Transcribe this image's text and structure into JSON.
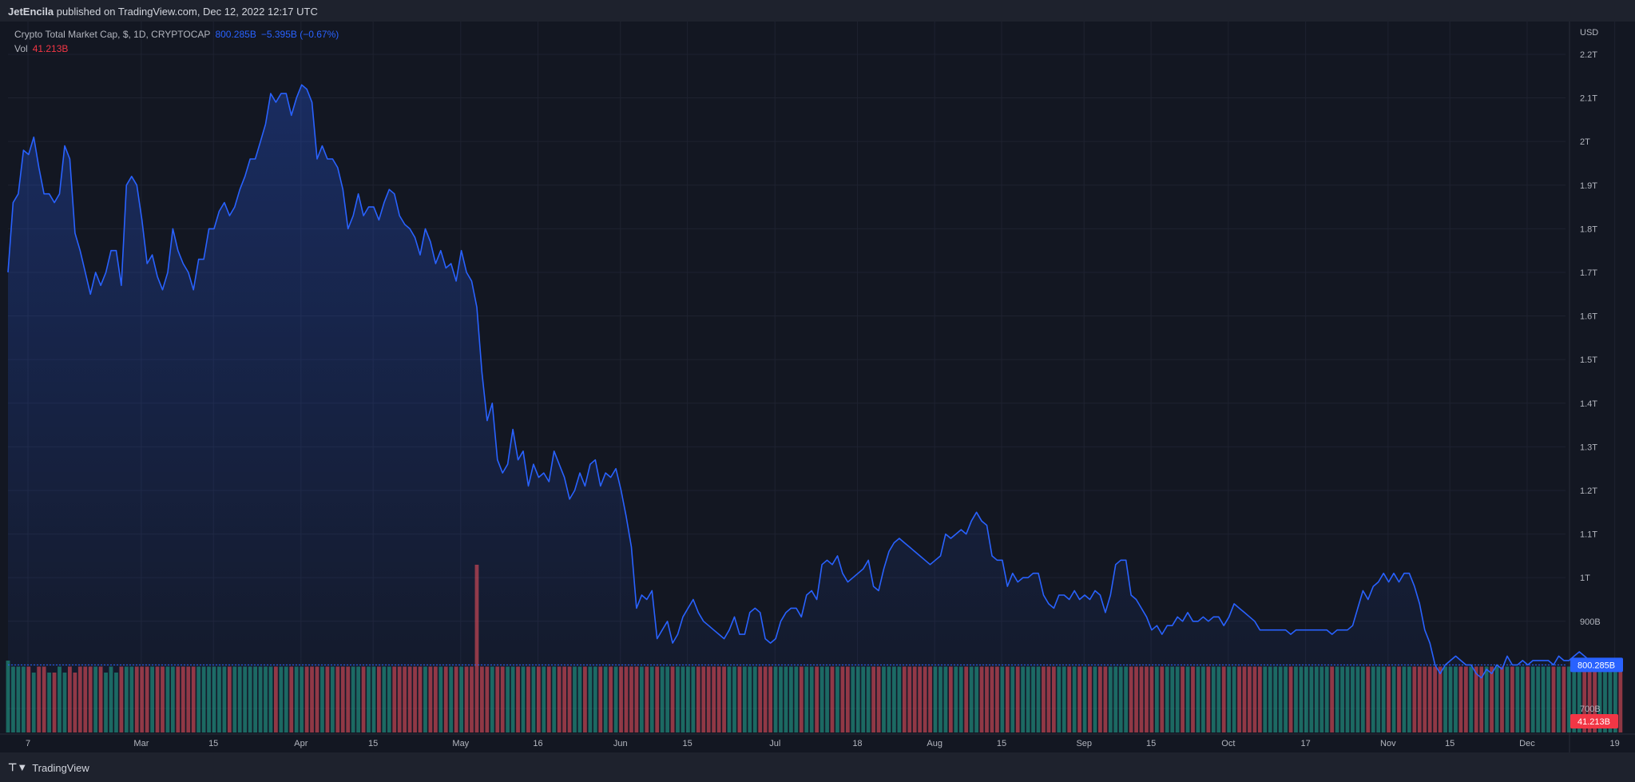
{
  "header": {
    "author": "JetEncila",
    "published_text": "published on TradingView.com, Dec 12, 2022 12:17 UTC"
  },
  "legend": {
    "symbol": "Crypto Total Market Cap, $, 1D, CRYPTOCAP",
    "price": "800.285B",
    "change": "−5.395B (−0.67%)",
    "vol_label": "Vol",
    "vol_value": "41.213B"
  },
  "footer": {
    "brand": "TradingView"
  },
  "colors": {
    "line": "#2962ff",
    "up_volume": "#22ab94",
    "down_volume": "#f7525f",
    "background": "#131722",
    "grid": "#1e2230",
    "text": "#b2b5be"
  },
  "chart_data": {
    "type": "area",
    "title": "Crypto Total Market Cap, $, 1D, CRYPTOCAP",
    "y_axis": {
      "unit": "USD",
      "ticks": [
        "2.2T",
        "2.1T",
        "2T",
        "1.9T",
        "1.8T",
        "1.7T",
        "1.6T",
        "1.5T",
        "1.4T",
        "1.3T",
        "1.2T",
        "1.1T",
        "1T",
        "900B",
        "800B",
        "700B"
      ],
      "tick_values": [
        2200,
        2100,
        2000,
        1900,
        1800,
        1700,
        1600,
        1500,
        1400,
        1300,
        1200,
        1100,
        1000,
        900,
        800,
        700
      ],
      "ylim": [
        645,
        2275
      ]
    },
    "x_axis": {
      "tick_labels": [
        "7",
        "Mar",
        "15",
        "Apr",
        "15",
        "May",
        "16",
        "Jun",
        "15",
        "Jul",
        "18",
        "Aug",
        "15",
        "Sep",
        "15",
        "Oct",
        "17",
        "Nov",
        "15",
        "Dec",
        "19"
      ],
      "tick_days": [
        0,
        22,
        36,
        53,
        67,
        84,
        99,
        115,
        128,
        145,
        161,
        176,
        189,
        205,
        218,
        233,
        248,
        264,
        276,
        291,
        308
      ]
    },
    "last_price_label": "800.285B",
    "last_volume_label": "41.213B",
    "series": [
      {
        "kind": "price",
        "unit": "billion USD",
        "start_date": "2022-02-07",
        "values": [
          1700,
          1860,
          1880,
          1980,
          1970,
          2010,
          1940,
          1880,
          1880,
          1860,
          1880,
          1990,
          1960,
          1790,
          1750,
          1700,
          1650,
          1700,
          1670,
          1700,
          1750,
          1750,
          1670,
          1900,
          1920,
          1900,
          1820,
          1720,
          1740,
          1690,
          1660,
          1700,
          1800,
          1750,
          1720,
          1700,
          1660,
          1730,
          1730,
          1800,
          1800,
          1840,
          1860,
          1830,
          1850,
          1890,
          1920,
          1960,
          1960,
          2000,
          2040,
          2110,
          2090,
          2110,
          2110,
          2060,
          2100,
          2130,
          2120,
          2090,
          1960,
          1990,
          1960,
          1960,
          1940,
          1890,
          1800,
          1830,
          1880,
          1830,
          1850,
          1850,
          1820,
          1860,
          1890,
          1880,
          1830,
          1810,
          1800,
          1780,
          1740,
          1800,
          1770,
          1720,
          1750,
          1710,
          1720,
          1680,
          1750,
          1700,
          1680,
          1620,
          1470,
          1360,
          1400,
          1270,
          1240,
          1260,
          1340,
          1270,
          1290,
          1210,
          1260,
          1230,
          1240,
          1220,
          1290,
          1260,
          1230,
          1180,
          1200,
          1240,
          1210,
          1260,
          1270,
          1210,
          1240,
          1230,
          1250,
          1200,
          1140,
          1070,
          930,
          960,
          950,
          970,
          860,
          880,
          900,
          850,
          870,
          910,
          930,
          950,
          920,
          900,
          890,
          880,
          870,
          860,
          880,
          910,
          870,
          870,
          920,
          930,
          920,
          860,
          850,
          860,
          900,
          920,
          930,
          930,
          910,
          960,
          970,
          950,
          1030,
          1040,
          1030,
          1050,
          1010,
          990,
          1000,
          1010,
          1020,
          1040,
          980,
          970,
          1020,
          1060,
          1080,
          1090,
          1080,
          1070,
          1060,
          1050,
          1040,
          1030,
          1040,
          1050,
          1100,
          1090,
          1100,
          1110,
          1100,
          1130,
          1150,
          1130,
          1120,
          1050,
          1040,
          1040,
          980,
          1010,
          990,
          1000,
          1000,
          1010,
          1010,
          960,
          940,
          930,
          960,
          960,
          950,
          970,
          950,
          960,
          950,
          970,
          960,
          920,
          960,
          1030,
          1040,
          1040,
          960,
          950,
          930,
          910,
          880,
          890,
          870,
          890,
          890,
          910,
          900,
          920,
          900,
          900,
          910,
          900,
          910,
          910,
          890,
          910,
          940,
          930,
          920,
          910,
          900,
          880,
          880,
          880,
          880,
          880,
          880,
          870,
          880,
          880,
          880,
          880,
          880,
          880,
          880,
          870,
          880,
          880,
          880,
          890,
          930,
          970,
          950,
          980,
          990,
          1010,
          990,
          1010,
          990,
          1010,
          1010,
          980,
          940,
          880,
          850,
          800,
          780,
          800,
          810,
          820,
          810,
          800,
          800,
          780,
          770,
          790,
          780,
          800,
          790,
          820,
          800,
          800,
          810,
          800,
          810,
          810,
          810,
          810,
          800,
          820,
          810,
          810,
          820,
          830,
          820,
          810,
          800,
          800,
          810,
          810,
          810,
          800
        ]
      },
      {
        "kind": "volume",
        "unit": "billion USD",
        "values": [
          120,
          110,
          110,
          110,
          110,
          100,
          110,
          110,
          100,
          100,
          110,
          100,
          110,
          100,
          110,
          110,
          110,
          110,
          110,
          100,
          110,
          100,
          110,
          110,
          110,
          110,
          110,
          110,
          110,
          110,
          110,
          110,
          110,
          110,
          110,
          110,
          110,
          110,
          110,
          110,
          110,
          110,
          110,
          110,
          110,
          110,
          110,
          110,
          110,
          110,
          110,
          110,
          110,
          110,
          110,
          110,
          110,
          110,
          110,
          110,
          110,
          110,
          110,
          110,
          110,
          110,
          110,
          110,
          110,
          110,
          110,
          110,
          110,
          110,
          110,
          110,
          110,
          110,
          110,
          110,
          110,
          110,
          110,
          110,
          110,
          110,
          110,
          110,
          110,
          110,
          110,
          280,
          110,
          110,
          110,
          110,
          110,
          110,
          110,
          110,
          110,
          110,
          110,
          110,
          110,
          110,
          110,
          110,
          110,
          110,
          110,
          110,
          110,
          110,
          110,
          110,
          110,
          110,
          110,
          110,
          110,
          110,
          110,
          110,
          110,
          110,
          110,
          110,
          110,
          110,
          110,
          110,
          110,
          110,
          110,
          110,
          110,
          110,
          110,
          110,
          110,
          110,
          110,
          110,
          110,
          110,
          110,
          110,
          110,
          110,
          110,
          110,
          110,
          110,
          110,
          110,
          110,
          110,
          110,
          110,
          110,
          110,
          110,
          110,
          110,
          110,
          110,
          110,
          110,
          110,
          110,
          110,
          110,
          110,
          110,
          110,
          110,
          110,
          110,
          110,
          110,
          110,
          110,
          110,
          110,
          110,
          110,
          110,
          110,
          110,
          110,
          110,
          110,
          110,
          110,
          110,
          110,
          110,
          110,
          110,
          110,
          110,
          110,
          110,
          110,
          110,
          110,
          110,
          110,
          110,
          110,
          110,
          110,
          110,
          110,
          110,
          110,
          110,
          110,
          110,
          110,
          110,
          110,
          110,
          110,
          110,
          110,
          110,
          110,
          110,
          110,
          110,
          110,
          110,
          110,
          110,
          110,
          110,
          110,
          110,
          110,
          110,
          110,
          110,
          110,
          110,
          110,
          110,
          110,
          110,
          110,
          110,
          110,
          110,
          110,
          110,
          110,
          110,
          110,
          110,
          110,
          110,
          110,
          110,
          110,
          110,
          110,
          110,
          110,
          110,
          110,
          110,
          110,
          110,
          110,
          110,
          110,
          110,
          110,
          110,
          110,
          110,
          110,
          110,
          110,
          110,
          110,
          110,
          110,
          110,
          110,
          110,
          110,
          110,
          110,
          110,
          110,
          110,
          110,
          110,
          110,
          110,
          110,
          110,
          110,
          110,
          110,
          110,
          110,
          110,
          110,
          110,
          110,
          110,
          110,
          110,
          110,
          110,
          110,
          110,
          110,
          41
        ]
      }
    ]
  }
}
